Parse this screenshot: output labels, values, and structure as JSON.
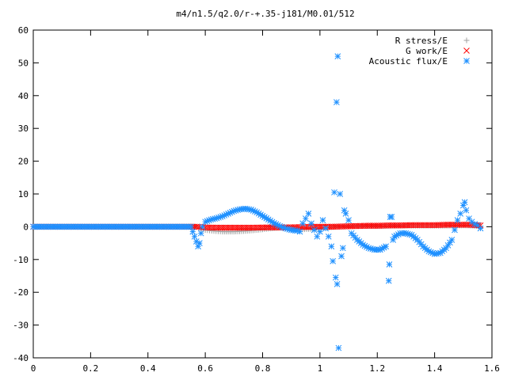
{
  "chart_data": {
    "type": "scatter",
    "title": "m4/n1.5/q2.0/r-+.35-j181/M0.01/512",
    "xlabel": "",
    "ylabel": "",
    "xlim": [
      0,
      1.6
    ],
    "ylim": [
      -40,
      60
    ],
    "xticks": [
      "0",
      "0.2",
      "0.4",
      "0.6",
      "0.8",
      "1",
      "1.2",
      "1.4",
      "1.6"
    ],
    "yticks": [
      "-40",
      "-30",
      "-20",
      "-10",
      "0",
      "10",
      "20",
      "30",
      "40",
      "50",
      "60"
    ],
    "legend_position": "top-right",
    "grid": false,
    "series": [
      {
        "name": "R stress/E",
        "marker": "+",
        "color": "#a0a0a0",
        "points": [
          [
            0.0,
            0
          ],
          [
            0.1,
            0
          ],
          [
            0.2,
            0
          ],
          [
            0.3,
            0
          ],
          [
            0.4,
            0
          ],
          [
            0.5,
            0
          ],
          [
            0.57,
            0
          ],
          [
            0.58,
            -0.5
          ],
          [
            0.6,
            -1
          ],
          [
            0.63,
            -1.3
          ],
          [
            0.66,
            -1.5
          ],
          [
            0.7,
            -1.5
          ],
          [
            0.74,
            -1.3
          ],
          [
            0.78,
            -1
          ],
          [
            0.82,
            -0.6
          ],
          [
            0.86,
            -0.3
          ],
          [
            0.9,
            -0.5
          ],
          [
            0.94,
            -0.8
          ],
          [
            0.98,
            -0.6
          ],
          [
            1.02,
            -0.3
          ],
          [
            1.06,
            0
          ],
          [
            1.1,
            0.1
          ],
          [
            1.14,
            0.2
          ],
          [
            1.18,
            0.2
          ],
          [
            1.22,
            0.2
          ],
          [
            1.26,
            0.3
          ],
          [
            1.3,
            0.3
          ],
          [
            1.34,
            0.3
          ],
          [
            1.38,
            0.3
          ],
          [
            1.42,
            0.3
          ],
          [
            1.46,
            0.3
          ],
          [
            1.5,
            0.4
          ],
          [
            1.54,
            0.3
          ],
          [
            1.56,
            0
          ]
        ]
      },
      {
        "name": "G work/E",
        "marker": "x",
        "color": "#ff0000",
        "points": [
          [
            0.0,
            0
          ],
          [
            0.1,
            0
          ],
          [
            0.2,
            0
          ],
          [
            0.3,
            0
          ],
          [
            0.4,
            0
          ],
          [
            0.5,
            0
          ],
          [
            0.57,
            0
          ],
          [
            0.6,
            -0.2
          ],
          [
            0.64,
            -0.3
          ],
          [
            0.7,
            -0.3
          ],
          [
            0.76,
            -0.3
          ],
          [
            0.82,
            -0.2
          ],
          [
            0.88,
            -0.2
          ],
          [
            0.94,
            -0.1
          ],
          [
            1.0,
            0
          ],
          [
            1.04,
            0
          ],
          [
            1.08,
            0.1
          ],
          [
            1.12,
            0.2
          ],
          [
            1.16,
            0.3
          ],
          [
            1.2,
            0.3
          ],
          [
            1.24,
            0.4
          ],
          [
            1.28,
            0.4
          ],
          [
            1.32,
            0.5
          ],
          [
            1.36,
            0.5
          ],
          [
            1.4,
            0.5
          ],
          [
            1.44,
            0.6
          ],
          [
            1.48,
            0.6
          ],
          [
            1.52,
            0.6
          ],
          [
            1.56,
            0.4
          ]
        ]
      },
      {
        "name": "Acoustic flux/E",
        "marker": "*",
        "color": "#1e90ff",
        "points": [
          [
            0.0,
            0
          ],
          [
            0.05,
            0
          ],
          [
            0.1,
            0
          ],
          [
            0.15,
            0
          ],
          [
            0.2,
            0
          ],
          [
            0.25,
            0
          ],
          [
            0.3,
            0
          ],
          [
            0.35,
            0
          ],
          [
            0.4,
            0
          ],
          [
            0.45,
            0
          ],
          [
            0.5,
            0
          ],
          [
            0.55,
            0
          ],
          [
            0.575,
            -6
          ],
          [
            0.58,
            -5
          ],
          [
            0.585,
            -2
          ],
          [
            0.59,
            0
          ],
          [
            0.6,
            1.5
          ],
          [
            0.62,
            2.2
          ],
          [
            0.64,
            2.6
          ],
          [
            0.66,
            3.2
          ],
          [
            0.68,
            4
          ],
          [
            0.7,
            4.8
          ],
          [
            0.72,
            5.3
          ],
          [
            0.74,
            5.5
          ],
          [
            0.76,
            5.2
          ],
          [
            0.78,
            4.4
          ],
          [
            0.8,
            3.3
          ],
          [
            0.82,
            2.2
          ],
          [
            0.84,
            1.1
          ],
          [
            0.86,
            0.2
          ],
          [
            0.88,
            -0.5
          ],
          [
            0.9,
            -1
          ],
          [
            0.92,
            -1.2
          ],
          [
            0.93,
            -1.5
          ],
          [
            0.94,
            1
          ],
          [
            0.95,
            2.5
          ],
          [
            0.96,
            4
          ],
          [
            0.97,
            1
          ],
          [
            0.98,
            -1
          ],
          [
            0.99,
            -3
          ],
          [
            1.0,
            -1.5
          ],
          [
            1.01,
            2
          ],
          [
            1.02,
            -0.5
          ],
          [
            1.03,
            -3
          ],
          [
            1.04,
            -6
          ],
          [
            1.045,
            -10.5
          ],
          [
            1.05,
            10.5
          ],
          [
            1.055,
            -15.5
          ],
          [
            1.06,
            -17.5
          ],
          [
            1.058,
            38
          ],
          [
            1.062,
            52
          ],
          [
            1.065,
            -37
          ],
          [
            1.07,
            10
          ],
          [
            1.075,
            -9
          ],
          [
            1.08,
            -6.5
          ],
          [
            1.085,
            5
          ],
          [
            1.09,
            4
          ],
          [
            1.1,
            2
          ],
          [
            1.11,
            -2
          ],
          [
            1.13,
            -4
          ],
          [
            1.15,
            -5.5
          ],
          [
            1.17,
            -6.5
          ],
          [
            1.19,
            -7
          ],
          [
            1.21,
            -7
          ],
          [
            1.23,
            -6
          ],
          [
            1.24,
            -16.5
          ],
          [
            1.242,
            -11.5
          ],
          [
            1.245,
            3
          ],
          [
            1.25,
            3
          ],
          [
            1.255,
            -4
          ],
          [
            1.26,
            -3
          ],
          [
            1.28,
            -2
          ],
          [
            1.3,
            -2
          ],
          [
            1.32,
            -2.5
          ],
          [
            1.34,
            -4
          ],
          [
            1.36,
            -6
          ],
          [
            1.38,
            -7.5
          ],
          [
            1.4,
            -8.3
          ],
          [
            1.42,
            -8
          ],
          [
            1.44,
            -6.5
          ],
          [
            1.46,
            -4
          ],
          [
            1.47,
            -1
          ],
          [
            1.48,
            2
          ],
          [
            1.49,
            4
          ],
          [
            1.5,
            6.5
          ],
          [
            1.505,
            7.5
          ],
          [
            1.51,
            5
          ],
          [
            1.52,
            2.5
          ],
          [
            1.53,
            1.5
          ],
          [
            1.54,
            0.8
          ],
          [
            1.55,
            0.5
          ],
          [
            1.56,
            -0.5
          ]
        ]
      }
    ]
  }
}
